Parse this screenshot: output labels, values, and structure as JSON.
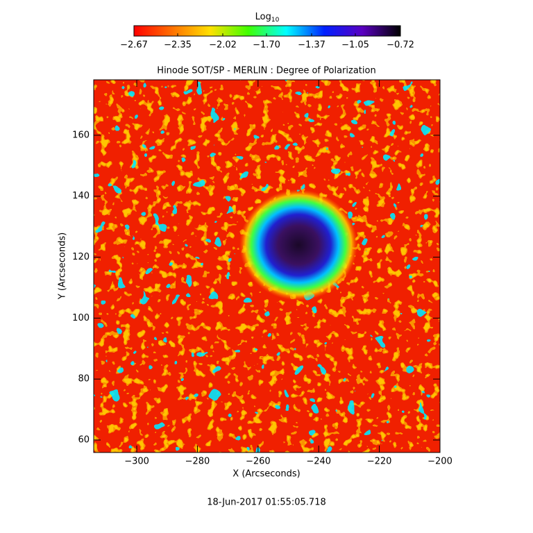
{
  "chart_data": {
    "type": "image",
    "title": "Hinode SOT/SP - MERLIN : Degree of Polarization",
    "x_label": "X (Arcseconds)",
    "y_label": "Y (Arcseconds)",
    "timestamp": "18-Jun-2017 01:55:05.718",
    "xlim": [
      -314.2,
      -200
    ],
    "ylim": [
      55.9,
      178.2
    ],
    "xticks": [
      {
        "value": -300,
        "label": "−300"
      },
      {
        "value": -280,
        "label": "−280"
      },
      {
        "value": -260,
        "label": "−260"
      },
      {
        "value": -240,
        "label": "−240"
      },
      {
        "value": -220,
        "label": "−220"
      },
      {
        "value": -200,
        "label": "−200"
      }
    ],
    "yticks": [
      60,
      80,
      100,
      120,
      140,
      160
    ],
    "colorbar": {
      "label": "Log",
      "label_subscript": "10",
      "lim": [
        -2.67,
        -0.72
      ],
      "ticks": [
        {
          "value": -2.67,
          "label": "−2.67"
        },
        {
          "value": -2.35,
          "label": "−2.35"
        },
        {
          "value": -2.02,
          "label": "−2.02"
        },
        {
          "value": -1.7,
          "label": "−1.70"
        },
        {
          "value": -1.37,
          "label": "−1.37"
        },
        {
          "value": -1.05,
          "label": "−1.05"
        },
        {
          "value": -0.72,
          "label": "−0.72"
        }
      ],
      "colors": [
        "#ff0000",
        "#ff7000",
        "#ffe000",
        "#40ff00",
        "#00ffff",
        "#0020ff",
        "#5a00c0",
        "#000000"
      ]
    }
  }
}
